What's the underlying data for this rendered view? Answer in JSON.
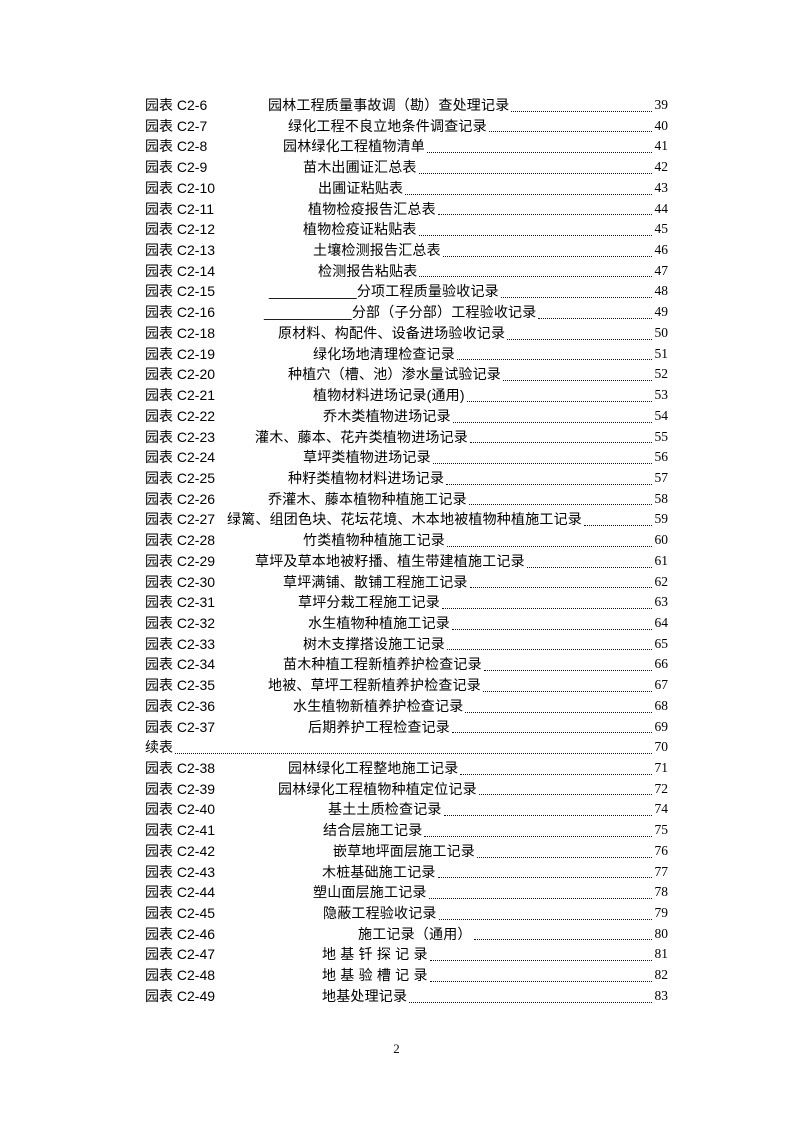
{
  "page": {
    "background": "#ffffff",
    "text_color": "#000000",
    "leader_dot_color": "#111111"
  },
  "footer": {
    "page_number": "2"
  },
  "toc": {
    "entries": [
      {
        "label": "园表 C2-6",
        "title": "园林工程质量事故调（勘）查处理记录",
        "page": "39",
        "indent": 123
      },
      {
        "label": "园表 C2-7",
        "title": "绿化工程不良立地条件调查记录",
        "page": "40",
        "indent": 143
      },
      {
        "label": "园表 C2-8",
        "title": "园林绿化工程植物清单",
        "page": "41",
        "indent": 138
      },
      {
        "label": "园表 C2-9",
        "title": "苗木出圃证汇总表",
        "page": "42",
        "indent": 158
      },
      {
        "label": "园表 C2-10",
        "title": "出圃证粘贴表",
        "page": "43",
        "indent": 173
      },
      {
        "label": "园表 C2-11",
        "title": "植物检疫报告汇总表",
        "page": "44",
        "indent": 163
      },
      {
        "label": "园表 C2-12",
        "title": "植物检疫证粘贴表",
        "page": "45",
        "indent": 158
      },
      {
        "label": "园表 C2-13",
        "title": "土壤检测报告汇总表",
        "page": "46",
        "indent": 168
      },
      {
        "label": "园表 C2-14",
        "title": "检测报告粘贴表",
        "page": "47",
        "indent": 173
      },
      {
        "label": "园表 C2-15",
        "title": "___________分项工程质量验收记录",
        "page": "48",
        "indent": 124
      },
      {
        "label": "园表 C2-16",
        "title": "___________分部（子分部）工程验收记录",
        "page": "49",
        "indent": 119
      },
      {
        "label": "园表 C2-18",
        "title": "原材料、构配件、设备进场验收记录",
        "page": "50",
        "indent": 133
      },
      {
        "label": "园表 C2-19",
        "title": "绿化场地清理检查记录",
        "page": "51",
        "indent": 168
      },
      {
        "label": "园表 C2-20",
        "title": "种植穴（槽、池）渗水量试验记录",
        "page": "52",
        "indent": 143
      },
      {
        "label": "园表 C2-21",
        "title": "植物材料进场记录(通用)",
        "page": "53",
        "indent": 168
      },
      {
        "label": "园表 C2-22",
        "title": "乔木类植物进场记录",
        "page": "54",
        "indent": 178
      },
      {
        "label": "园表 C2-23",
        "title": "灌木、藤本、花卉类植物进场记录",
        "page": "55",
        "indent": 110
      },
      {
        "label": "园表 C2-24",
        "title": "草坪类植物进场记录",
        "page": "56",
        "indent": 158
      },
      {
        "label": "园表 C2-25",
        "title": "种籽类植物材料进场记录",
        "page": "57",
        "indent": 143
      },
      {
        "label": "园表 C2-26",
        "title": "乔灌木、藤本植物种植施工记录",
        "page": "58",
        "indent": 123
      },
      {
        "label": "园表 C2-27",
        "title": "绿篱、组团色块、花坛花境、木本地被植物种植施工记录",
        "page": "59",
        "indent": 82
      },
      {
        "label": "园表 C2-28",
        "title": "竹类植物种植施工记录",
        "page": "60",
        "indent": 158
      },
      {
        "label": "园表 C2-29",
        "title": "草坪及草本地被籽播、植生带建植施工记录",
        "page": "61",
        "indent": 110
      },
      {
        "label": "园表 C2-30",
        "title": "草坪满铺、散铺工程施工记录",
        "page": "62",
        "indent": 138
      },
      {
        "label": "园表 C2-31",
        "title": "草坪分栽工程施工记录",
        "page": "63",
        "indent": 153
      },
      {
        "label": "园表 C2-32",
        "title": "水生植物种植施工记录",
        "page": "64",
        "indent": 163
      },
      {
        "label": "园表 C2-33",
        "title": "树木支撑搭设施工记录",
        "page": "65",
        "indent": 158
      },
      {
        "label": "园表 C2-34",
        "title": "苗木种植工程新植养护检查记录",
        "page": "66",
        "indent": 138
      },
      {
        "label": "园表 C2-35",
        "title": "地被、草坪工程新植养护检查记录",
        "page": "67",
        "indent": 123
      },
      {
        "label": "园表 C2-36",
        "title": "水生植物新植养护检查记录",
        "page": "68",
        "indent": 148
      },
      {
        "label": "园表 C2-37",
        "title": "后期养护工程检查记录",
        "page": "69",
        "indent": 163
      },
      {
        "label": "续表",
        "title": "",
        "page": "70",
        "indent": null
      },
      {
        "label": "园表 C2-38",
        "title": "园林绿化工程整地施工记录",
        "page": "71",
        "indent": 143
      },
      {
        "label": "园表 C2-39",
        "title": "园林绿化工程植物种植定位记录",
        "page": "72",
        "indent": 133
      },
      {
        "label": "园表 C2-40",
        "title": "基土土质检查记录",
        "page": "74",
        "indent": 183
      },
      {
        "label": "园表 C2-41",
        "title": "结合层施工记录",
        "page": "75",
        "indent": 178
      },
      {
        "label": "园表 C2-42",
        "title": "嵌草地坪面层施工记录",
        "page": "76",
        "indent": 188
      },
      {
        "label": "园表 C2-43",
        "title": "木桩基础施工记录",
        "page": "77",
        "indent": 177
      },
      {
        "label": "园表 C2-44",
        "title": "塑山面层施工记录",
        "page": "78",
        "indent": 168
      },
      {
        "label": "园表 C2-45",
        "title": "隐蔽工程验收记录",
        "page": "79",
        "indent": 178
      },
      {
        "label": "园表 C2-46",
        "title": "施工记录（通用）",
        "page": "80",
        "indent": 213
      },
      {
        "label": "园表 C2-47",
        "title": "地 基 钎 探 记 录",
        "page": "81",
        "indent": 177
      },
      {
        "label": "园表 C2-48",
        "title": "地 基 验 槽 记 录",
        "page": "82",
        "indent": 177
      },
      {
        "label": "园表 C2-49",
        "title": "地基处理记录",
        "page": "83",
        "indent": 177
      }
    ]
  }
}
